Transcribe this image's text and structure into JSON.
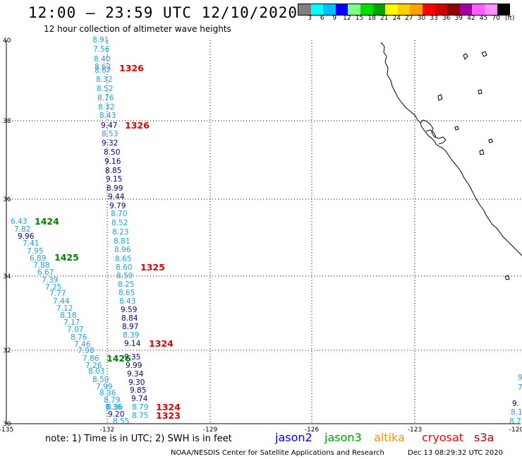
{
  "header": {
    "title": "12:00 — 23:59 UTC 12/10/2020",
    "subtitle": "12 hour collection of altimeter wave heights"
  },
  "color_scale": {
    "colors": [
      "#808080",
      "#00ffff",
      "#00bfff",
      "#0000ff",
      "#7fff7f",
      "#00e000",
      "#00a000",
      "#ffff00",
      "#ffd000",
      "#ffa000",
      "#ff0000",
      "#d00000",
      "#900000",
      "#a000a0",
      "#ff60ff",
      "#ff90ff",
      "#000000"
    ],
    "ticks": [
      "3",
      "6",
      "9",
      "12",
      "15",
      "18",
      "21",
      "24",
      "27",
      "30",
      "33",
      "36",
      "39",
      "42",
      "45",
      "70",
      "(ft)"
    ]
  },
  "axes": {
    "lat_labels": [
      "40",
      "38",
      "36",
      "34",
      "32",
      "30"
    ],
    "lon_labels": [
      "-135",
      "-132",
      "-129",
      "-126",
      "-123",
      "-120"
    ]
  },
  "tracks": {
    "track_a": {
      "color": "#20a0e0",
      "values": [
        "8.91",
        "7.56",
        "8.40",
        "8.62",
        "8.67",
        "8.32",
        "8.52",
        "8.76",
        "8.32",
        "8.43",
        "8.53",
        "8.70",
        "8.52",
        "8.23",
        "8.81",
        "8.96",
        "8.65",
        "8.60",
        "8.59",
        "8.25",
        "8.65",
        "8.43",
        "8.39",
        "8.36",
        "8.79",
        "8.75",
        "8.55"
      ]
    },
    "track_a_dark": {
      "color": "#000090",
      "values": [
        "9.47",
        "9.32",
        "8.50",
        "9.16",
        "8.85",
        "9.15",
        "8.99",
        "9.44",
        "9.79",
        "9.59",
        "8.84",
        "8.97",
        "9.14",
        "9.35",
        "9.99",
        "9.34",
        "9.30",
        "9.85",
        "9.74",
        "9.20"
      ]
    },
    "track_b": {
      "color": "#20a0e0",
      "values": [
        "6.43",
        "7.82",
        "7.41",
        "7.95",
        "6.89",
        "7.88",
        "6.67",
        "7.39",
        "7.25",
        "7.77",
        "7.44",
        "7.12",
        "8.18",
        "7.17",
        "7.07",
        "8.76",
        "7.46",
        "7.98",
        "7.86",
        "7.26",
        "8.03",
        "8.50",
        "7.99",
        "8.36",
        "8.79",
        "8.36"
      ]
    },
    "track_b_dark": {
      "color": "#000090",
      "values": [
        "9.96"
      ]
    },
    "track_edge": {
      "values": [
        "9.",
        "7.",
        "9.",
        "8.1",
        "8.7"
      ]
    }
  },
  "time_labels": [
    {
      "text": "1326",
      "color": "#e00000"
    },
    {
      "text": "1326",
      "color": "#e00000"
    },
    {
      "text": "1325",
      "color": "#e00000"
    },
    {
      "text": "1324",
      "color": "#e00000"
    },
    {
      "text": "1324",
      "color": "#e00000"
    },
    {
      "text": "1323",
      "color": "#e00000"
    },
    {
      "text": "1424",
      "color": "#008000"
    },
    {
      "text": "1425",
      "color": "#008000"
    },
    {
      "text": "1426",
      "color": "#008000"
    }
  ],
  "legend": {
    "note": "note:  1) Time is in UTC;  2) SWH is in feet",
    "satellites": [
      {
        "name": "jason2",
        "color": "#0000ff"
      },
      {
        "name": "jason3",
        "color": "#00a000"
      },
      {
        "name": "altika",
        "color": "#ff9000"
      },
      {
        "name": "cryosat",
        "color": "#ff0000"
      },
      {
        "name": "s3a",
        "color": "#c00000"
      }
    ]
  },
  "footer": {
    "credit": "NOAA/NESDIS Center for Satellite Applications and Research",
    "timestamp": "Dec 13 08:29:32 UTC 2020"
  }
}
